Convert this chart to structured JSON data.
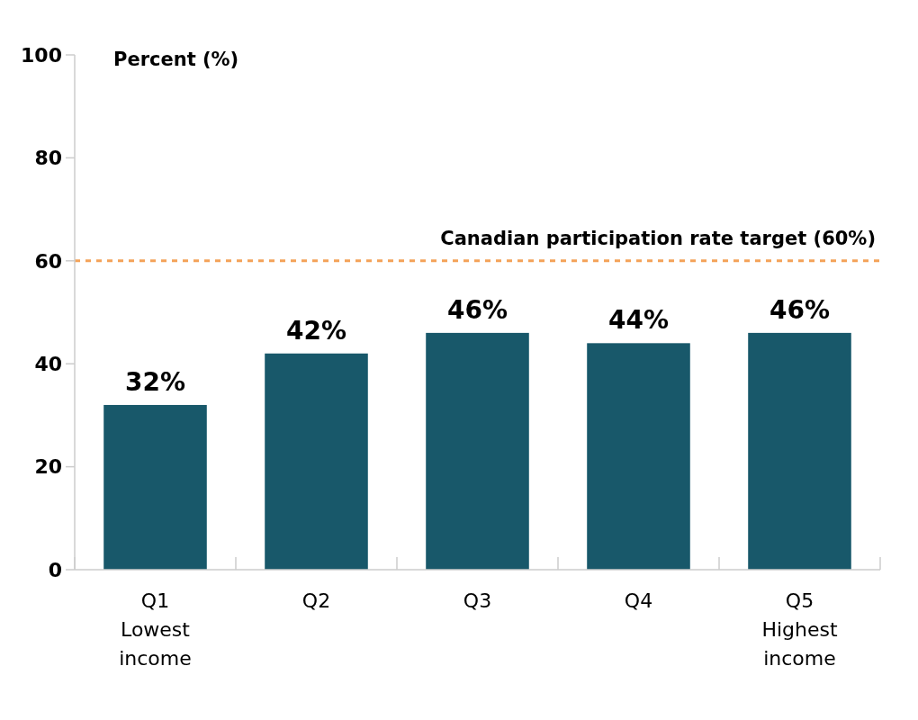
{
  "chart_data": {
    "type": "bar",
    "ylabel": "Percent (%)",
    "categories": [
      "Q1 Lowest income",
      "Q2",
      "Q3",
      "Q4",
      "Q5 Highest income"
    ],
    "values": [
      32,
      42,
      46,
      44,
      46
    ],
    "value_labels": [
      "32%",
      "42%",
      "46%",
      "44%",
      "46%"
    ],
    "color": "#18586a",
    "ylim": [
      0,
      100
    ],
    "yticks": [
      0,
      20,
      40,
      60,
      80,
      100
    ],
    "grid": false,
    "ref_lines": [
      {
        "axis": "y",
        "value": 60,
        "label": "Canadian participation rate target (60%)",
        "color": "#f4a259",
        "line_style": "dashed"
      }
    ]
  }
}
